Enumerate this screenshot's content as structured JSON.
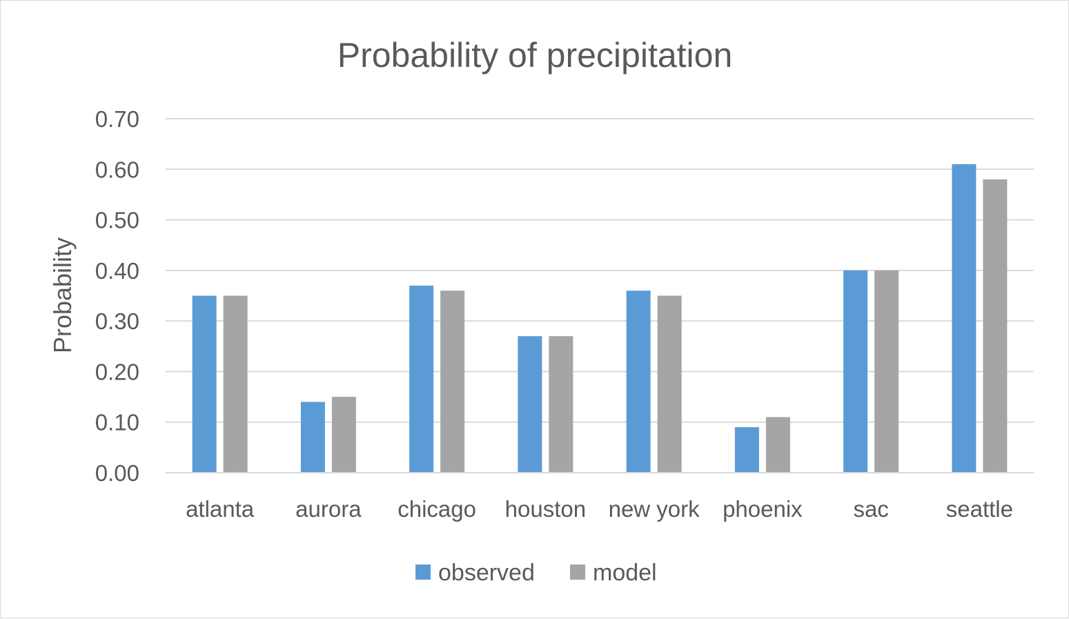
{
  "chart_data": {
    "type": "bar",
    "title": "Probability of precipitation",
    "xlabel": "",
    "ylabel": "Probability",
    "categories": [
      "atlanta",
      "aurora",
      "chicago",
      "houston",
      "new york",
      "phoenix",
      "sac",
      "seattle"
    ],
    "series": [
      {
        "name": "observed",
        "color": "#5b9bd5",
        "values": [
          0.35,
          0.14,
          0.37,
          0.27,
          0.36,
          0.09,
          0.4,
          0.61
        ]
      },
      {
        "name": "model",
        "color": "#a5a5a5",
        "values": [
          0.35,
          0.15,
          0.36,
          0.27,
          0.35,
          0.11,
          0.4,
          0.58
        ]
      }
    ],
    "ylim": [
      0,
      0.7
    ],
    "yticks": [
      "0.00",
      "0.10",
      "0.20",
      "0.30",
      "0.40",
      "0.50",
      "0.60",
      "0.70"
    ],
    "grid": true,
    "gridline_color": "#d9d9d9",
    "legend_position": "bottom"
  }
}
